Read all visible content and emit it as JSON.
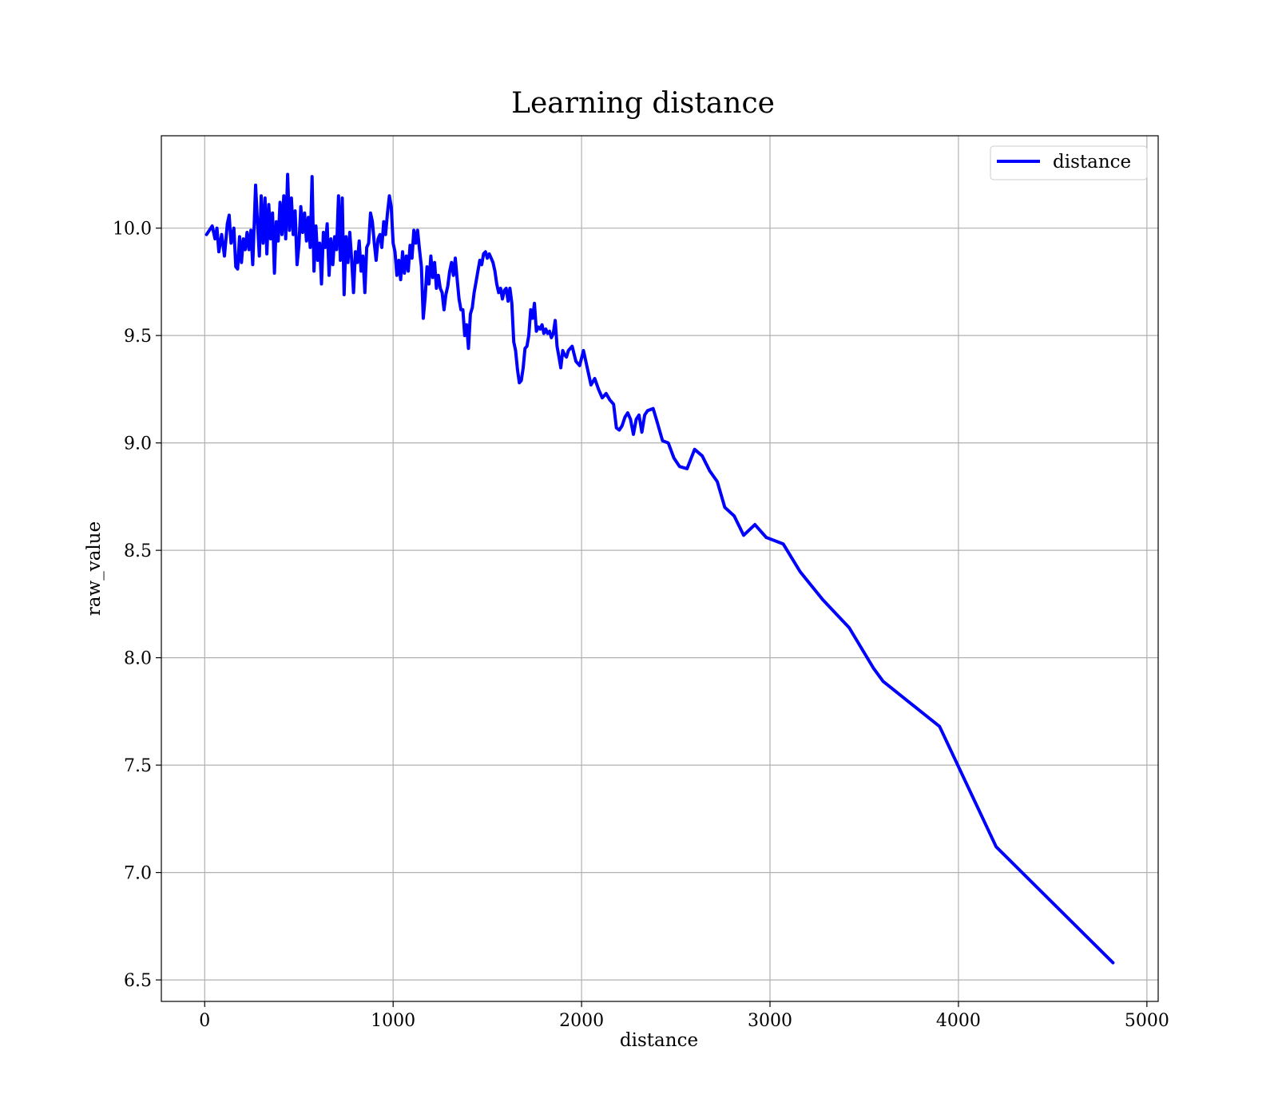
{
  "chart_data": {
    "type": "line",
    "title": "Learning distance",
    "xlabel": "distance",
    "ylabel": "raw_value",
    "xlim": [
      -230,
      5060
    ],
    "ylim": [
      6.4,
      10.43
    ],
    "xticks": [
      0,
      1000,
      2000,
      3000,
      4000,
      5000
    ],
    "xtick_labels": [
      "0",
      "1000",
      "2000",
      "3000",
      "4000",
      "5000"
    ],
    "yticks": [
      6.5,
      7.0,
      7.5,
      8.0,
      8.5,
      9.0,
      9.5,
      10.0
    ],
    "ytick_labels": [
      "6.5",
      "7.0",
      "7.5",
      "8.0",
      "8.5",
      "9.0",
      "9.5",
      "10.0"
    ],
    "grid": true,
    "legend_position": "top-right",
    "series": [
      {
        "name": "distance",
        "color": "#0000ff",
        "points": [
          [
            10,
            9.97
          ],
          [
            40,
            10.01
          ],
          [
            55,
            9.95
          ],
          [
            65,
            10.0
          ],
          [
            75,
            9.89
          ],
          [
            90,
            9.97
          ],
          [
            105,
            9.87
          ],
          [
            120,
            10.02
          ],
          [
            130,
            10.06
          ],
          [
            140,
            9.93
          ],
          [
            155,
            10.0
          ],
          [
            165,
            9.82
          ],
          [
            175,
            9.81
          ],
          [
            185,
            9.96
          ],
          [
            195,
            9.84
          ],
          [
            205,
            9.95
          ],
          [
            215,
            9.9
          ],
          [
            225,
            9.98
          ],
          [
            235,
            9.9
          ],
          [
            245,
            9.99
          ],
          [
            255,
            9.83
          ],
          [
            262,
            10.0
          ],
          [
            270,
            10.2
          ],
          [
            280,
            10.03
          ],
          [
            290,
            9.87
          ],
          [
            300,
            10.15
          ],
          [
            310,
            9.93
          ],
          [
            320,
            10.14
          ],
          [
            330,
            9.88
          ],
          [
            340,
            10.11
          ],
          [
            350,
            9.95
          ],
          [
            360,
            10.07
          ],
          [
            370,
            9.79
          ],
          [
            380,
            10.03
          ],
          [
            390,
            9.94
          ],
          [
            400,
            10.12
          ],
          [
            410,
            9.97
          ],
          [
            420,
            10.15
          ],
          [
            430,
            9.95
          ],
          [
            440,
            10.25
          ],
          [
            450,
            9.99
          ],
          [
            460,
            10.14
          ],
          [
            470,
            9.97
          ],
          [
            480,
            10.08
          ],
          [
            490,
            9.83
          ],
          [
            500,
            9.92
          ],
          [
            510,
            10.1
          ],
          [
            520,
            9.98
          ],
          [
            530,
            10.07
          ],
          [
            540,
            9.94
          ],
          [
            550,
            10.05
          ],
          [
            560,
            9.91
          ],
          [
            570,
            10.24
          ],
          [
            580,
            9.8
          ],
          [
            590,
            10.01
          ],
          [
            600,
            9.85
          ],
          [
            610,
            9.93
          ],
          [
            620,
            9.74
          ],
          [
            630,
            9.98
          ],
          [
            640,
            9.91
          ],
          [
            650,
            10.02
          ],
          [
            660,
            9.78
          ],
          [
            670,
            9.95
          ],
          [
            680,
            9.83
          ],
          [
            690,
            9.96
          ],
          [
            700,
            9.9
          ],
          [
            710,
            10.15
          ],
          [
            720,
            9.85
          ],
          [
            730,
            10.14
          ],
          [
            740,
            9.69
          ],
          [
            750,
            9.96
          ],
          [
            760,
            9.84
          ],
          [
            770,
            9.98
          ],
          [
            780,
            9.85
          ],
          [
            790,
            9.7
          ],
          [
            800,
            9.89
          ],
          [
            810,
            9.84
          ],
          [
            820,
            9.94
          ],
          [
            830,
            9.8
          ],
          [
            840,
            9.87
          ],
          [
            850,
            9.7
          ],
          [
            860,
            9.91
          ],
          [
            870,
            9.93
          ],
          [
            880,
            10.07
          ],
          [
            890,
            10.03
          ],
          [
            900,
            9.93
          ],
          [
            910,
            9.85
          ],
          [
            920,
            9.95
          ],
          [
            930,
            9.97
          ],
          [
            940,
            9.91
          ],
          [
            950,
            10.03
          ],
          [
            960,
            9.97
          ],
          [
            970,
            10.07
          ],
          [
            980,
            10.15
          ],
          [
            990,
            10.1
          ],
          [
            1000,
            9.93
          ],
          [
            1010,
            9.89
          ],
          [
            1020,
            9.78
          ],
          [
            1030,
            9.85
          ],
          [
            1040,
            9.76
          ],
          [
            1050,
            9.89
          ],
          [
            1060,
            9.79
          ],
          [
            1070,
            9.87
          ],
          [
            1080,
            9.8
          ],
          [
            1090,
            9.92
          ],
          [
            1100,
            9.86
          ],
          [
            1110,
            9.99
          ],
          [
            1120,
            9.93
          ],
          [
            1130,
            9.99
          ],
          [
            1140,
            9.9
          ],
          [
            1150,
            9.82
          ],
          [
            1160,
            9.58
          ],
          [
            1170,
            9.68
          ],
          [
            1180,
            9.82
          ],
          [
            1190,
            9.74
          ],
          [
            1200,
            9.87
          ],
          [
            1210,
            9.77
          ],
          [
            1220,
            9.84
          ],
          [
            1230,
            9.72
          ],
          [
            1240,
            9.78
          ],
          [
            1250,
            9.72
          ],
          [
            1260,
            9.7
          ],
          [
            1270,
            9.62
          ],
          [
            1280,
            9.69
          ],
          [
            1290,
            9.73
          ],
          [
            1300,
            9.8
          ],
          [
            1310,
            9.84
          ],
          [
            1320,
            9.78
          ],
          [
            1330,
            9.86
          ],
          [
            1340,
            9.76
          ],
          [
            1350,
            9.67
          ],
          [
            1360,
            9.62
          ],
          [
            1370,
            9.62
          ],
          [
            1380,
            9.5
          ],
          [
            1390,
            9.55
          ],
          [
            1400,
            9.44
          ],
          [
            1410,
            9.6
          ],
          [
            1420,
            9.63
          ],
          [
            1430,
            9.7
          ],
          [
            1440,
            9.75
          ],
          [
            1450,
            9.8
          ],
          [
            1460,
            9.85
          ],
          [
            1470,
            9.83
          ],
          [
            1480,
            9.88
          ],
          [
            1490,
            9.89
          ],
          [
            1500,
            9.86
          ],
          [
            1510,
            9.88
          ],
          [
            1520,
            9.86
          ],
          [
            1530,
            9.84
          ],
          [
            1540,
            9.8
          ],
          [
            1550,
            9.74
          ],
          [
            1560,
            9.7
          ],
          [
            1570,
            9.72
          ],
          [
            1580,
            9.67
          ],
          [
            1590,
            9.71
          ],
          [
            1600,
            9.72
          ],
          [
            1610,
            9.66
          ],
          [
            1620,
            9.72
          ],
          [
            1630,
            9.65
          ],
          [
            1640,
            9.47
          ],
          [
            1650,
            9.43
          ],
          [
            1660,
            9.34
          ],
          [
            1670,
            9.28
          ],
          [
            1680,
            9.29
          ],
          [
            1690,
            9.35
          ],
          [
            1700,
            9.44
          ],
          [
            1710,
            9.45
          ],
          [
            1720,
            9.5
          ],
          [
            1730,
            9.62
          ],
          [
            1740,
            9.58
          ],
          [
            1750,
            9.65
          ],
          [
            1760,
            9.52
          ],
          [
            1770,
            9.54
          ],
          [
            1780,
            9.53
          ],
          [
            1790,
            9.55
          ],
          [
            1800,
            9.51
          ],
          [
            1810,
            9.53
          ],
          [
            1820,
            9.51
          ],
          [
            1830,
            9.52
          ],
          [
            1840,
            9.49
          ],
          [
            1850,
            9.51
          ],
          [
            1860,
            9.57
          ],
          [
            1870,
            9.45
          ],
          [
            1880,
            9.4
          ],
          [
            1890,
            9.35
          ],
          [
            1900,
            9.43
          ],
          [
            1910,
            9.41
          ],
          [
            1920,
            9.4
          ],
          [
            1930,
            9.43
          ],
          [
            1950,
            9.45
          ],
          [
            1970,
            9.38
          ],
          [
            1990,
            9.36
          ],
          [
            2010,
            9.43
          ],
          [
            2030,
            9.35
          ],
          [
            2050,
            9.27
          ],
          [
            2070,
            9.3
          ],
          [
            2090,
            9.25
          ],
          [
            2110,
            9.21
          ],
          [
            2130,
            9.23
          ],
          [
            2150,
            9.2
          ],
          [
            2170,
            9.18
          ],
          [
            2185,
            9.07
          ],
          [
            2200,
            9.06
          ],
          [
            2215,
            9.08
          ],
          [
            2230,
            9.12
          ],
          [
            2245,
            9.14
          ],
          [
            2260,
            9.11
          ],
          [
            2275,
            9.04
          ],
          [
            2290,
            9.11
          ],
          [
            2305,
            9.13
          ],
          [
            2320,
            9.05
          ],
          [
            2335,
            9.13
          ],
          [
            2350,
            9.15
          ],
          [
            2380,
            9.16
          ],
          [
            2400,
            9.1
          ],
          [
            2430,
            9.01
          ],
          [
            2460,
            9.0
          ],
          [
            2490,
            8.93
          ],
          [
            2520,
            8.89
          ],
          [
            2560,
            8.88
          ],
          [
            2600,
            8.97
          ],
          [
            2640,
            8.94
          ],
          [
            2680,
            8.87
          ],
          [
            2720,
            8.82
          ],
          [
            2760,
            8.7
          ],
          [
            2810,
            8.66
          ],
          [
            2860,
            8.57
          ],
          [
            2920,
            8.62
          ],
          [
            2980,
            8.56
          ],
          [
            3070,
            8.53
          ],
          [
            3160,
            8.4
          ],
          [
            3280,
            8.27
          ],
          [
            3420,
            8.14
          ],
          [
            3550,
            7.95
          ],
          [
            3600,
            7.89
          ],
          [
            3900,
            7.68
          ],
          [
            4200,
            7.12
          ],
          [
            4820,
            6.58
          ]
        ]
      }
    ]
  }
}
